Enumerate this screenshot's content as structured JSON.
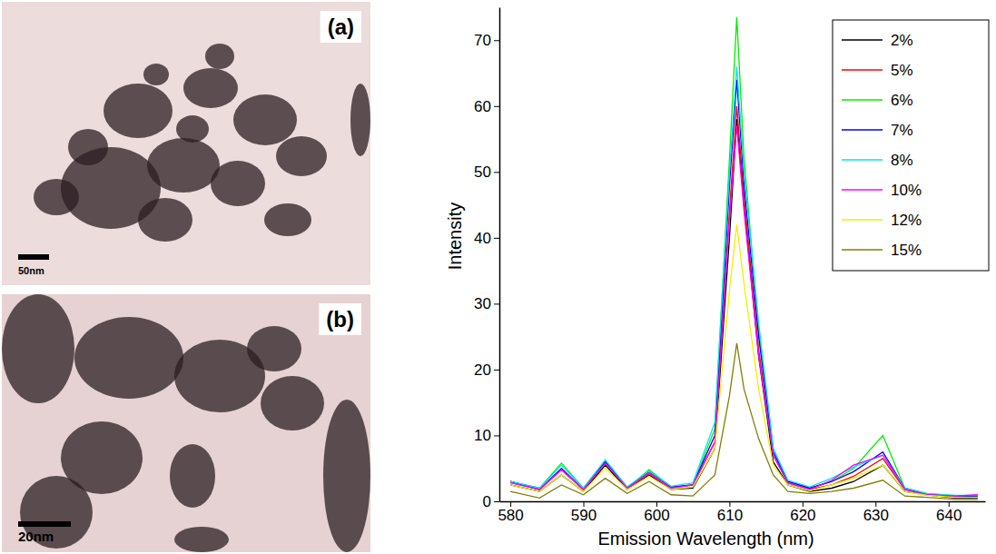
{
  "chart_data": {
    "type": "line",
    "x_label": "Emission Wavelength (nm)",
    "y_label": "Intensity",
    "x": [
      580,
      584,
      587,
      590,
      593,
      596,
      599,
      602,
      605,
      608,
      610,
      611,
      612,
      614,
      616,
      618,
      621,
      624,
      627,
      631,
      634,
      637,
      641,
      644
    ],
    "series": [
      {
        "name": "2%",
        "color": "#000000",
        "values": [
          2.5,
          1.5,
          4.0,
          1.5,
          5.5,
          1.8,
          4.0,
          1.8,
          2.0,
          8,
          40,
          58,
          45,
          22,
          6,
          2.5,
          1.5,
          2.0,
          3.0,
          5.5,
          1.5,
          1.0,
          0.5,
          0.5
        ]
      },
      {
        "name": "5%",
        "color": "#ff0000",
        "values": [
          3,
          1.8,
          4.8,
          1.8,
          6,
          2,
          4.2,
          2,
          2.5,
          9,
          44,
          60,
          46,
          23,
          7,
          2.8,
          1.8,
          2.5,
          3.8,
          6.5,
          1.8,
          1,
          0.7,
          0.6
        ]
      },
      {
        "name": "6%",
        "color": "#00ee00",
        "values": [
          3,
          2,
          5.8,
          2,
          6.2,
          2,
          4.8,
          2.2,
          2.5,
          11,
          52,
          73.5,
          52,
          26,
          8,
          3,
          2,
          3,
          5,
          10,
          2,
          1.2,
          0.8,
          0.8
        ]
      },
      {
        "name": "7%",
        "color": "#0000ff",
        "values": [
          3,
          1.8,
          5,
          1.8,
          6,
          2,
          4.5,
          2.2,
          2.5,
          10,
          48,
          64,
          48,
          25,
          7.5,
          3,
          2,
          3,
          4.5,
          7.5,
          2,
          1,
          0.8,
          0.8
        ]
      },
      {
        "name": "8%",
        "color": "#00e5ee",
        "values": [
          3,
          2,
          5.5,
          2,
          6.3,
          2.2,
          4.6,
          2.3,
          2.8,
          12,
          50,
          66,
          50,
          27,
          8,
          3.2,
          2.2,
          3.5,
          5.2,
          7,
          2,
          1.2,
          0.9,
          0.9
        ]
      },
      {
        "name": "10%",
        "color": "#ff00ff",
        "values": [
          2.8,
          1.8,
          4.8,
          1.8,
          5.8,
          2,
          4.3,
          2,
          2.5,
          9,
          43,
          57,
          44,
          22,
          7,
          2.8,
          1.8,
          3.2,
          5.5,
          7,
          1.8,
          1,
          0.8,
          1.0
        ]
      },
      {
        "name": "12%",
        "color": "#f0f000",
        "values": [
          2.5,
          1.5,
          4,
          1.5,
          5,
          1.8,
          3.8,
          1.8,
          2.2,
          8,
          32,
          42,
          33,
          17,
          5.5,
          2.5,
          1.6,
          2.5,
          3.5,
          5.5,
          1.5,
          0.9,
          0.6,
          0.6
        ]
      },
      {
        "name": "15%",
        "color": "#808000",
        "values": [
          1.5,
          0.5,
          2.5,
          1,
          3.5,
          1.2,
          3.0,
          1.0,
          0.8,
          4,
          16,
          24,
          17,
          9.5,
          4,
          1.5,
          1.2,
          1.5,
          2.0,
          3.2,
          0.8,
          0.6,
          0.3,
          0.3
        ]
      }
    ],
    "xlim": [
      578.5,
      645
    ],
    "ylim": [
      0,
      75
    ],
    "xticks": [
      580,
      590,
      600,
      610,
      620,
      630,
      640
    ],
    "yticks": [
      0,
      10,
      20,
      30,
      40,
      50,
      60,
      70
    ],
    "legend": "upper right",
    "grid": false
  },
  "images": [
    {
      "label": "(a)",
      "scale_bar": "50nm"
    },
    {
      "label": "(b)",
      "scale_bar": "20nm"
    }
  ]
}
